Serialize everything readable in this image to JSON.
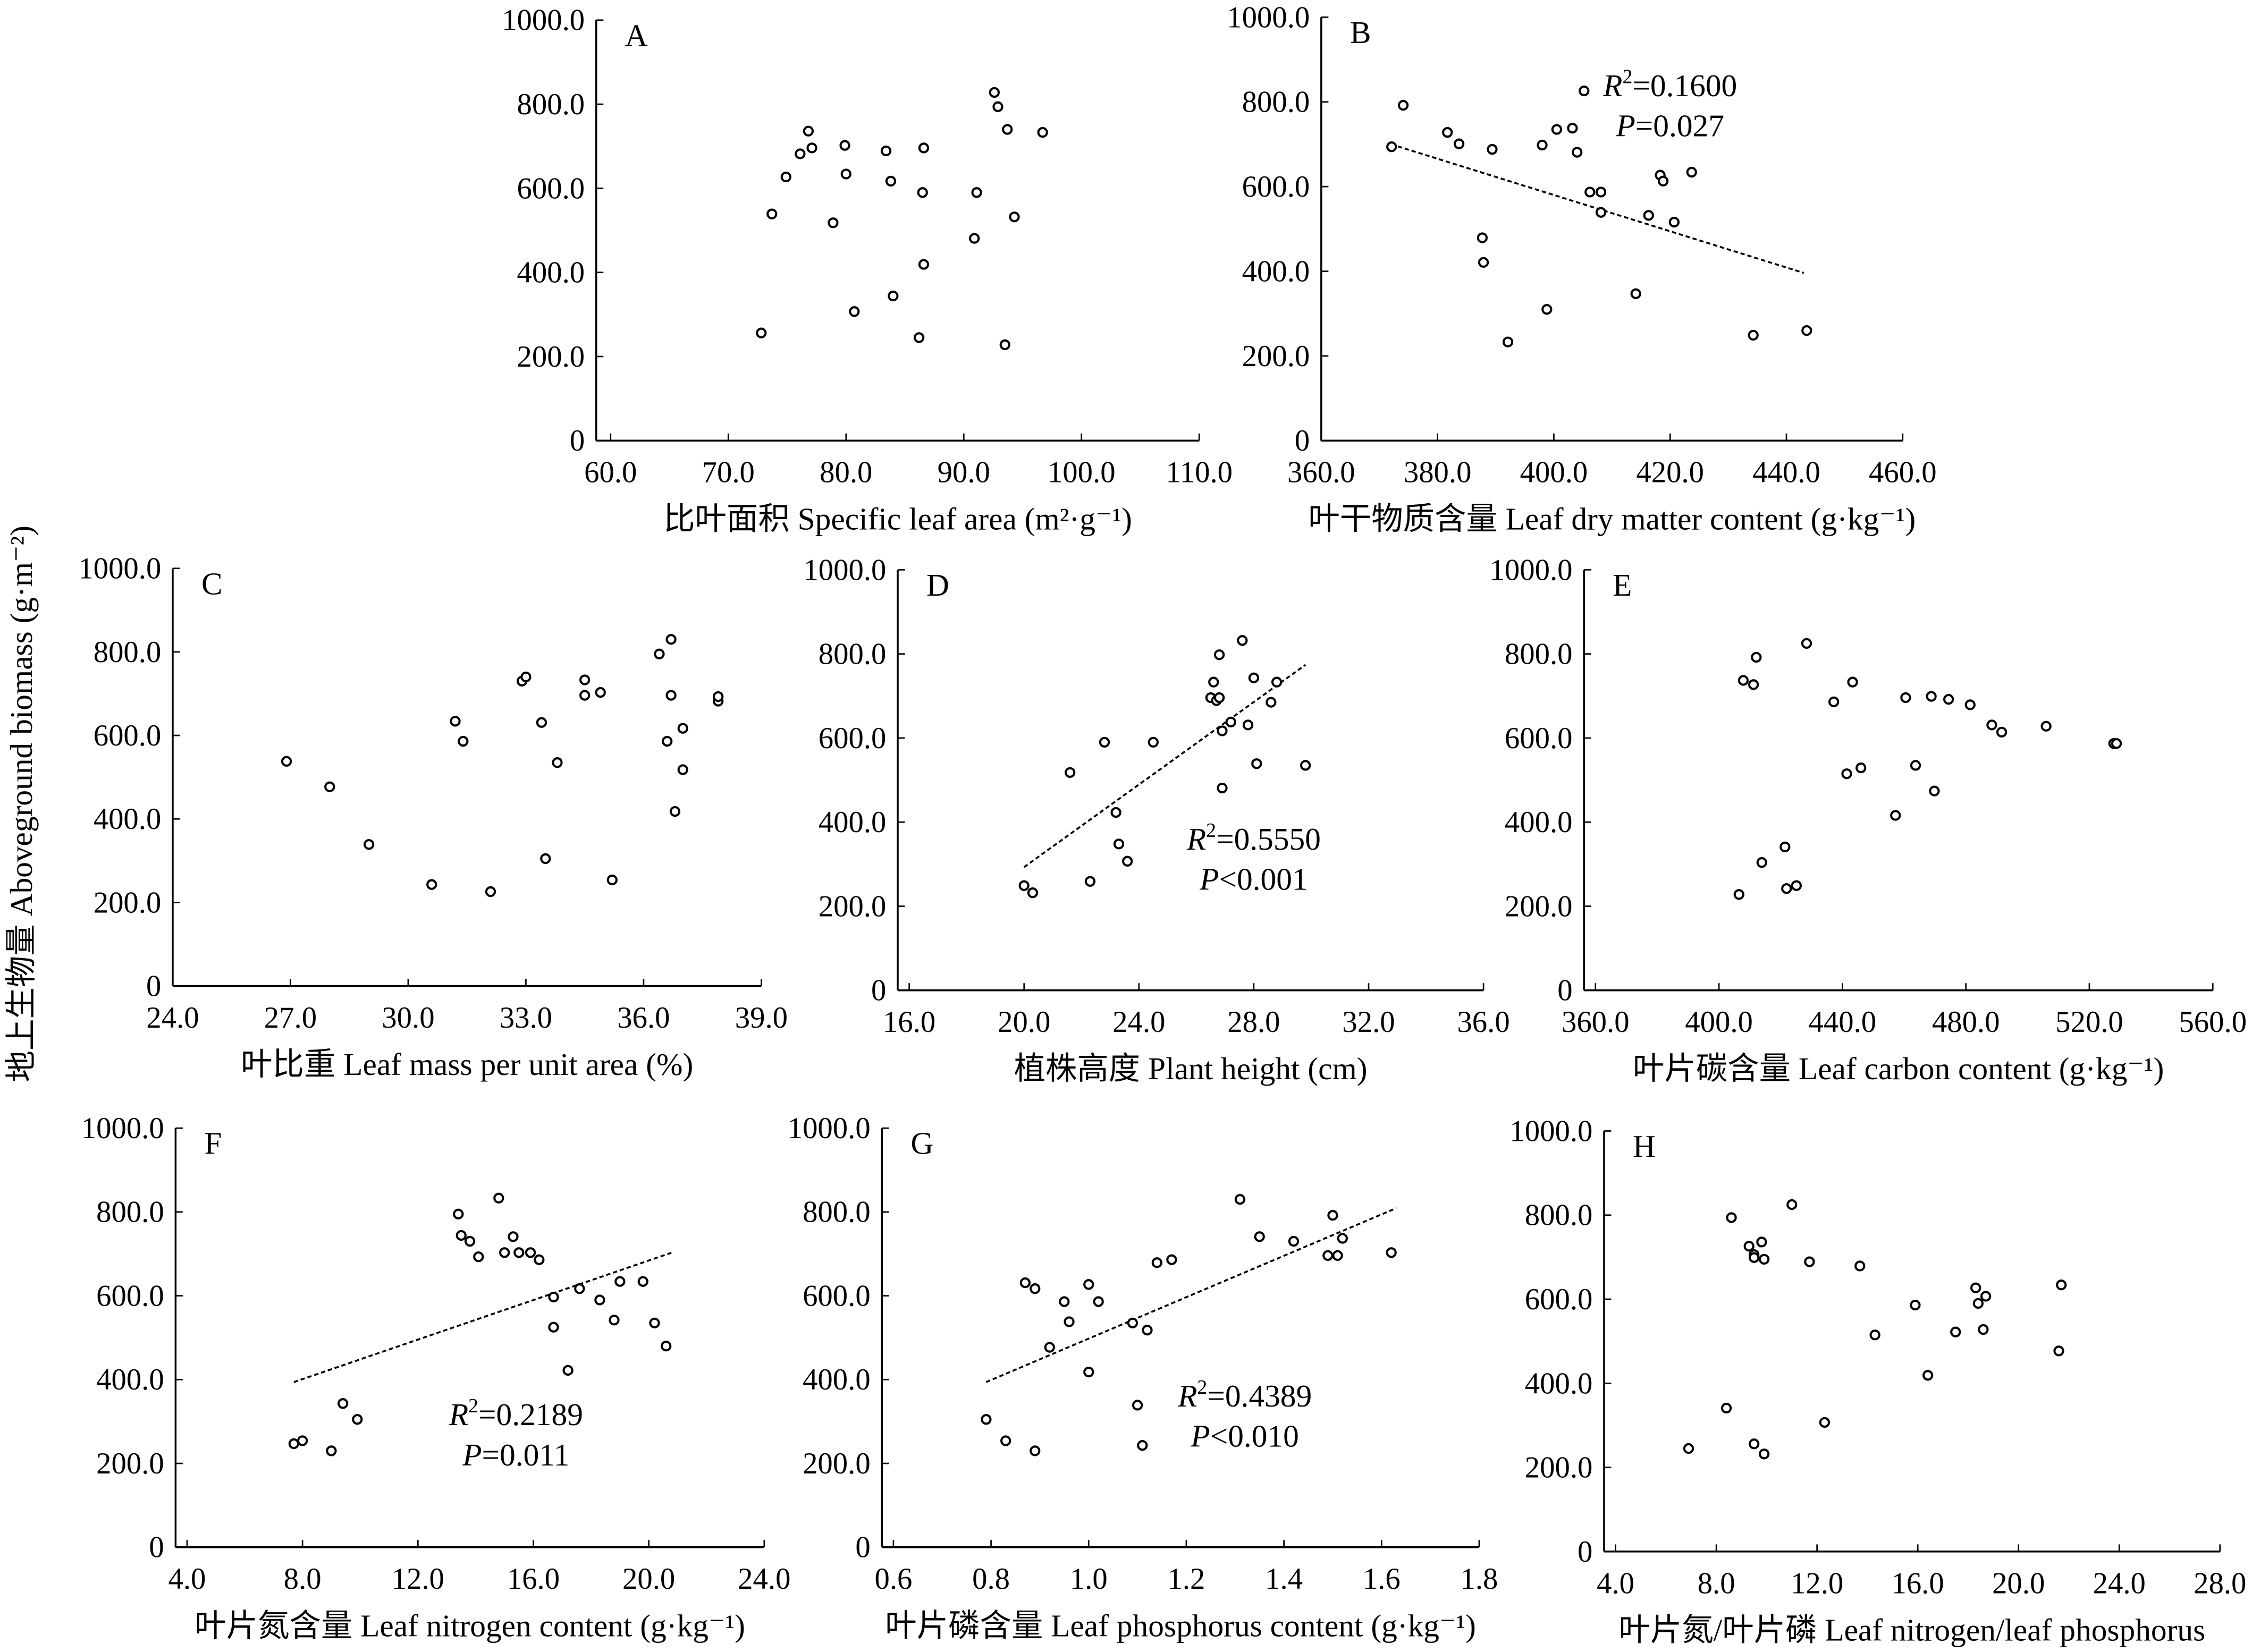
{
  "chart_data": {
    "type": "scatter",
    "ylabel": "地上生物量 Aboveground biomass (g·m⁻²)",
    "ylim": [
      0,
      1000
    ],
    "y_ticks": [
      0,
      200,
      400,
      600,
      800,
      1000
    ],
    "y_tick_labels": [
      "0",
      "200.0",
      "400.0",
      "600.0",
      "800.0",
      "1000.0"
    ],
    "panels": [
      {
        "letter": "A",
        "xlabel": "比叶面积 Specific leaf area (m²·g⁻¹)",
        "xlim": [
          60,
          110
        ],
        "x_ticks": [
          60,
          70,
          80,
          90,
          100,
          110
        ],
        "x_tick_labels": [
          "60.0",
          "70.0",
          "80.0",
          "90.0",
          "100.0",
          "110.0"
        ],
        "points": [
          [
            72.8,
            256
          ],
          [
            73.7,
            539
          ],
          [
            74.9,
            627
          ],
          [
            76.1,
            682
          ],
          [
            76.8,
            736
          ],
          [
            77.1,
            696
          ],
          [
            78.9,
            518
          ],
          [
            79.9,
            702
          ],
          [
            80.0,
            634
          ],
          [
            80.7,
            307
          ],
          [
            83.4,
            689
          ],
          [
            83.8,
            617
          ],
          [
            84.0,
            344
          ],
          [
            86.2,
            245
          ],
          [
            86.5,
            590
          ],
          [
            86.6,
            696
          ],
          [
            86.6,
            419
          ],
          [
            90.9,
            481
          ],
          [
            91.1,
            590
          ],
          [
            92.6,
            828
          ],
          [
            92.9,
            794
          ],
          [
            93.5,
            228
          ],
          [
            93.7,
            740
          ],
          [
            94.3,
            532
          ],
          [
            96.7,
            733
          ]
        ],
        "trend": null
      },
      {
        "letter": "B",
        "xlabel": "叶干物质含量 Leaf dry matter content (g·kg⁻¹)",
        "xlim": [
          360,
          460
        ],
        "x_ticks": [
          360,
          380,
          400,
          420,
          440,
          460
        ],
        "x_tick_labels": [
          "360.0",
          "380.0",
          "400.0",
          "420.0",
          "440.0",
          "460.0"
        ],
        "points": [
          [
            372.1,
            694
          ],
          [
            374.1,
            792
          ],
          [
            381.7,
            728
          ],
          [
            383.7,
            701
          ],
          [
            387.7,
            479
          ],
          [
            387.9,
            421
          ],
          [
            389.4,
            688
          ],
          [
            392.1,
            233
          ],
          [
            398.0,
            698
          ],
          [
            398.8,
            310
          ],
          [
            400.5,
            735
          ],
          [
            403.2,
            738
          ],
          [
            404.0,
            681
          ],
          [
            405.2,
            826
          ],
          [
            406.2,
            587
          ],
          [
            408.1,
            587
          ],
          [
            408.1,
            539
          ],
          [
            414.1,
            347
          ],
          [
            416.3,
            532
          ],
          [
            418.3,
            627
          ],
          [
            418.8,
            613
          ],
          [
            420.7,
            516
          ],
          [
            423.7,
            634
          ],
          [
            434.3,
            249
          ],
          [
            443.5,
            260
          ]
        ],
        "trend": [
          [
            372,
            700
          ],
          [
            443,
            396
          ]
        ],
        "r2": "0.1600",
        "p_op": "=",
        "p": "0.027",
        "ann_pos": "top-right"
      },
      {
        "letter": "C",
        "xlabel": "叶比重 Leaf mass per unit area (%)",
        "xlim": [
          24,
          39
        ],
        "x_ticks": [
          24,
          27,
          30,
          33,
          36,
          39
        ],
        "x_tick_labels": [
          "24.0",
          "27.0",
          "30.0",
          "33.0",
          "36.0",
          "39.0"
        ],
        "points": [
          [
            26.9,
            538
          ],
          [
            28.0,
            477
          ],
          [
            29.0,
            339
          ],
          [
            30.6,
            243
          ],
          [
            31.2,
            634
          ],
          [
            31.4,
            586
          ],
          [
            32.1,
            226
          ],
          [
            32.9,
            730
          ],
          [
            33.0,
            740
          ],
          [
            33.4,
            631
          ],
          [
            33.5,
            305
          ],
          [
            33.8,
            535
          ],
          [
            34.5,
            696
          ],
          [
            34.5,
            733
          ],
          [
            34.9,
            703
          ],
          [
            35.2,
            254
          ],
          [
            36.4,
            795
          ],
          [
            36.6,
            586
          ],
          [
            36.7,
            830
          ],
          [
            36.7,
            696
          ],
          [
            36.8,
            418
          ],
          [
            37.0,
            617
          ],
          [
            37.0,
            518
          ],
          [
            37.9,
            682
          ],
          [
            37.9,
            693
          ]
        ],
        "trend": null
      },
      {
        "letter": "D",
        "xlabel": "植株高度 Plant height (cm)",
        "xlim": [
          16,
          36
        ],
        "x_ticks": [
          16,
          20,
          24,
          28,
          32,
          36
        ],
        "x_tick_labels": [
          "16.0",
          "20.0",
          "24.0",
          "28.0",
          "32.0",
          "36.0"
        ],
        "points": [
          [
            20.0,
            249
          ],
          [
            20.3,
            232
          ],
          [
            21.6,
            518
          ],
          [
            22.3,
            259
          ],
          [
            22.8,
            590
          ],
          [
            23.2,
            423
          ],
          [
            23.3,
            348
          ],
          [
            23.6,
            307
          ],
          [
            24.5,
            590
          ],
          [
            26.5,
            696
          ],
          [
            26.6,
            733
          ],
          [
            26.7,
            689
          ],
          [
            26.8,
            798
          ],
          [
            26.8,
            696
          ],
          [
            26.9,
            481
          ],
          [
            26.9,
            617
          ],
          [
            27.2,
            638
          ],
          [
            27.6,
            832
          ],
          [
            27.8,
            631
          ],
          [
            28.0,
            743
          ],
          [
            28.1,
            539
          ],
          [
            28.6,
            685
          ],
          [
            28.8,
            733
          ],
          [
            29.8,
            535
          ]
        ],
        "trend": [
          [
            20.0,
            293
          ],
          [
            29.8,
            774
          ]
        ],
        "r2": "0.5550",
        "p_op": "<",
        "p": "0.001",
        "ann_pos": "bottom-right"
      },
      {
        "letter": "E",
        "xlabel": "叶片碳含量 Leaf carbon content (g·kg⁻¹)",
        "xlim": [
          360,
          560
        ],
        "x_ticks": [
          360,
          400,
          440,
          480,
          520,
          560
        ],
        "x_tick_labels": [
          "360.0",
          "400.0",
          "440.0",
          "480.0",
          "520.0",
          "560.0"
        ],
        "points": [
          [
            406.5,
            228
          ],
          [
            407.9,
            737
          ],
          [
            411.2,
            727
          ],
          [
            412.1,
            792
          ],
          [
            413.9,
            304
          ],
          [
            421.4,
            341
          ],
          [
            421.9,
            242
          ],
          [
            425.1,
            249
          ],
          [
            428.4,
            825
          ],
          [
            437.2,
            686
          ],
          [
            441.4,
            515
          ],
          [
            443.3,
            733
          ],
          [
            446.0,
            529
          ],
          [
            457.2,
            416
          ],
          [
            460.5,
            696
          ],
          [
            463.7,
            535
          ],
          [
            468.8,
            699
          ],
          [
            469.8,
            474
          ],
          [
            474.4,
            692
          ],
          [
            481.4,
            679
          ],
          [
            488.4,
            631
          ],
          [
            491.6,
            614
          ],
          [
            506.0,
            628
          ],
          [
            527.9,
            587
          ],
          [
            528.8,
            587
          ]
        ],
        "trend": null
      },
      {
        "letter": "F",
        "xlabel": "叶片氮含量 Leaf nitrogen content (g·kg⁻¹)",
        "xlim": [
          4,
          24
        ],
        "x_ticks": [
          4,
          8,
          12,
          16,
          20,
          24
        ],
        "x_tick_labels": [
          "4.0",
          "8.0",
          "12.0",
          "16.0",
          "20.0",
          "24.0"
        ],
        "points": [
          [
            7.7,
            247
          ],
          [
            8.0,
            254
          ],
          [
            9.0,
            230
          ],
          [
            9.4,
            343
          ],
          [
            9.9,
            305
          ],
          [
            13.4,
            795
          ],
          [
            13.5,
            744
          ],
          [
            13.8,
            730
          ],
          [
            14.1,
            693
          ],
          [
            14.8,
            833
          ],
          [
            15.0,
            703
          ],
          [
            15.3,
            741
          ],
          [
            15.5,
            703
          ],
          [
            15.9,
            703
          ],
          [
            16.2,
            686
          ],
          [
            16.7,
            597
          ],
          [
            16.7,
            525
          ],
          [
            17.2,
            422
          ],
          [
            17.6,
            617
          ],
          [
            18.3,
            590
          ],
          [
            18.8,
            542
          ],
          [
            19.0,
            634
          ],
          [
            19.8,
            634
          ],
          [
            20.2,
            535
          ],
          [
            20.6,
            480
          ]
        ],
        "trend": [
          [
            7.7,
            394
          ],
          [
            20.8,
            703
          ]
        ],
        "r2": "0.2189",
        "p_op": "=",
        "p": "0.011",
        "ann_pos": "bottom-center"
      },
      {
        "letter": "G",
        "xlabel": "叶片磷含量 Leaf phosphorus content (g·kg⁻¹)",
        "xlim": [
          0.6,
          1.8
        ],
        "x_ticks": [
          0.6,
          0.8,
          1.0,
          1.2,
          1.4,
          1.6,
          1.8
        ],
        "x_tick_labels": [
          "0.6",
          "0.8",
          "1.0",
          "1.2",
          "1.4",
          "1.6",
          "1.8"
        ],
        "points": [
          [
            0.79,
            305
          ],
          [
            0.83,
            254
          ],
          [
            0.87,
            631
          ],
          [
            0.89,
            617
          ],
          [
            0.89,
            230
          ],
          [
            0.92,
            477
          ],
          [
            0.95,
            586
          ],
          [
            0.96,
            538
          ],
          [
            1.0,
            627
          ],
          [
            1.0,
            418
          ],
          [
            1.02,
            586
          ],
          [
            1.09,
            535
          ],
          [
            1.1,
            339
          ],
          [
            1.11,
            243
          ],
          [
            1.12,
            518
          ],
          [
            1.14,
            679
          ],
          [
            1.17,
            686
          ],
          [
            1.31,
            830
          ],
          [
            1.35,
            741
          ],
          [
            1.42,
            730
          ],
          [
            1.49,
            696
          ],
          [
            1.5,
            792
          ],
          [
            1.51,
            696
          ],
          [
            1.52,
            737
          ],
          [
            1.62,
            703
          ]
        ],
        "trend": [
          [
            0.79,
            394
          ],
          [
            1.63,
            809
          ]
        ],
        "r2": "0.4389",
        "p_op": "<",
        "p": "0.010",
        "ann_pos": "bottom-right"
      },
      {
        "letter": "H",
        "xlabel": "叶片氮/叶片磷 Leaf nitrogen/leaf phosphorus",
        "xlim": [
          4,
          28
        ],
        "x_ticks": [
          4,
          8,
          12,
          16,
          20,
          24,
          28
        ],
        "x_tick_labels": [
          "4.0",
          "8.0",
          "12.0",
          "16.0",
          "20.0",
          "24.0",
          "28.0"
        ],
        "points": [
          [
            6.9,
            245
          ],
          [
            8.4,
            341
          ],
          [
            8.6,
            794
          ],
          [
            9.3,
            726
          ],
          [
            9.5,
            706
          ],
          [
            9.8,
            736
          ],
          [
            9.5,
            699
          ],
          [
            9.9,
            695
          ],
          [
            9.5,
            256
          ],
          [
            9.9,
            232
          ],
          [
            11.0,
            825
          ],
          [
            11.7,
            689
          ],
          [
            12.3,
            307
          ],
          [
            13.7,
            679
          ],
          [
            14.3,
            515
          ],
          [
            15.9,
            586
          ],
          [
            16.4,
            419
          ],
          [
            17.5,
            522
          ],
          [
            18.3,
            627
          ],
          [
            18.4,
            590
          ],
          [
            18.7,
            607
          ],
          [
            18.6,
            528
          ],
          [
            21.6,
            477
          ],
          [
            21.7,
            634
          ]
        ],
        "trend": null
      }
    ]
  }
}
